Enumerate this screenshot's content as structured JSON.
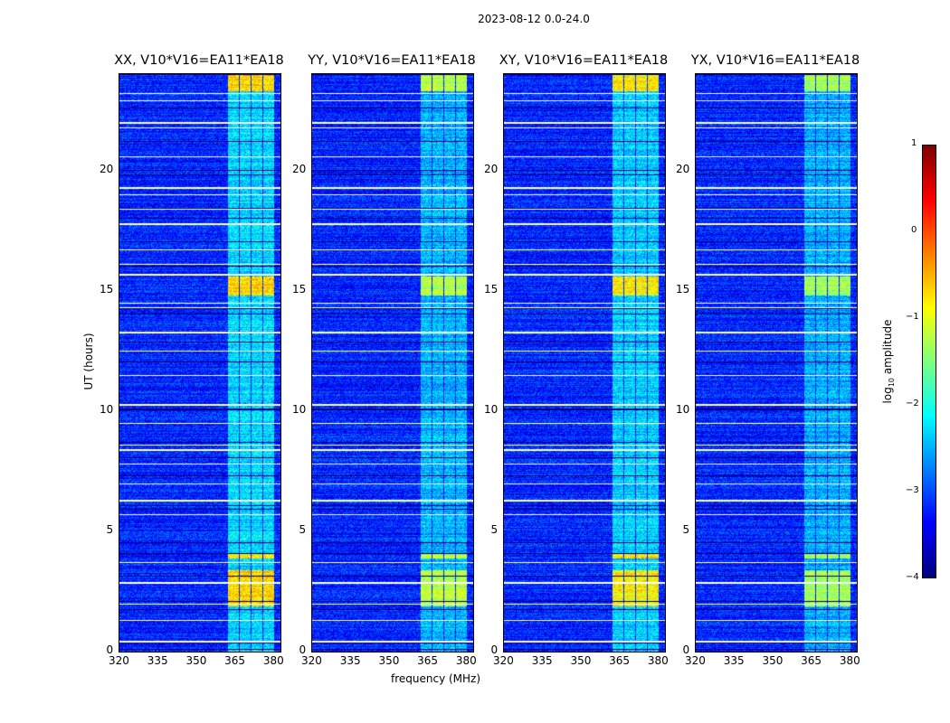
{
  "chart_data": {
    "type": "heatmap",
    "title": "2023-08-12 0.0-24.0",
    "xlabel": "frequency (MHz)",
    "ylabel": "UT (hours)",
    "xlim": [
      320,
      382.5
    ],
    "ylim": [
      0,
      24
    ],
    "xticks": [
      "320",
      "335",
      "350",
      "365",
      "380"
    ],
    "yticks": [
      "0",
      "5",
      "10",
      "15",
      "20"
    ],
    "panels": [
      {
        "title": "XX, V10*V16=EA11*EA18",
        "band_strength": 1.0
      },
      {
        "title": "YY, V10*V16=EA11*EA18",
        "band_strength": 0.8
      },
      {
        "title": "XY, V10*V16=EA11*EA18",
        "band_strength": 0.95
      },
      {
        "title": "YX, V10*V16=EA11*EA18",
        "band_strength": 0.75
      }
    ],
    "colorbar": {
      "label_main": "log",
      "label_sub": "10",
      "label_rest": " amplitude",
      "range": [
        -4,
        1
      ],
      "ticks": [
        "1",
        "0",
        "−1",
        "−2",
        "−3",
        "−4"
      ],
      "colormap": "jet"
    },
    "background_level": -3.2,
    "rfi_band_mhz": [
      362,
      380
    ],
    "bright_periods_hours": [
      [
        14.8,
        15.6
      ],
      [
        23.3,
        24.0
      ],
      [
        3.9,
        4.1
      ],
      [
        1.9,
        3.4
      ]
    ],
    "flagged_hours": [
      0.45,
      1.3,
      2.0,
      2.9,
      3.7,
      5.7,
      6.3,
      7.0,
      7.8,
      8.4,
      8.6,
      9.5,
      10.3,
      11.5,
      12.5,
      13.3,
      14.3,
      14.5,
      15.7,
      16.1,
      16.7,
      17.8,
      18.4,
      19.0,
      19.3,
      20.6,
      21.8,
      22.0,
      22.9,
      23.2
    ]
  }
}
